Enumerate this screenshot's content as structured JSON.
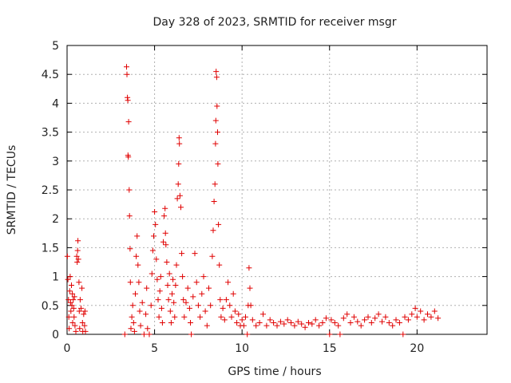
{
  "chart_data": {
    "type": "scatter",
    "title": "Day 328 of 2023, SRMTID for receiver msgr",
    "xlabel": "GPS time / hours",
    "ylabel": "SRMTID / TECUs",
    "xlim": [
      0,
      24
    ],
    "ylim": [
      0,
      5
    ],
    "xticks": [
      0,
      5,
      10,
      15,
      20
    ],
    "yticks": [
      0,
      0.5,
      1,
      1.5,
      2,
      2.5,
      3,
      3.5,
      4,
      4.5,
      5
    ],
    "xtick_labels": [
      "0",
      "5",
      "10",
      "15",
      "20"
    ],
    "ytick_labels": [
      "0",
      "0.5",
      "1",
      "1.5",
      "2",
      "2.5",
      "3",
      "3.5",
      "4",
      "4.5",
      "5"
    ],
    "grid": true,
    "marker": "plus",
    "color": "#e00000",
    "series": [
      {
        "name": "SRMTID",
        "points": [
          [
            0.02,
            1.35
          ],
          [
            0.05,
            0.95
          ],
          [
            0.08,
            0.6
          ],
          [
            0.1,
            0.3
          ],
          [
            0.12,
            0.1
          ],
          [
            0.15,
            0.75
          ],
          [
            0.18,
            1.0
          ],
          [
            0.2,
            0.55
          ],
          [
            0.22,
            0.4
          ],
          [
            0.25,
            0.85
          ],
          [
            0.28,
            0.5
          ],
          [
            0.3,
            0.7
          ],
          [
            0.32,
            0.2
          ],
          [
            0.35,
            0.6
          ],
          [
            0.38,
            0.45
          ],
          [
            0.4,
            0.3
          ],
          [
            0.42,
            0.65
          ],
          [
            0.45,
            0.15
          ],
          [
            0.5,
            0.05
          ],
          [
            0.55,
            1.35
          ],
          [
            0.58,
            1.25
          ],
          [
            0.6,
            1.45
          ],
          [
            0.62,
            1.62
          ],
          [
            0.65,
            1.3
          ],
          [
            0.68,
            0.9
          ],
          [
            0.7,
            0.4
          ],
          [
            0.72,
            0.1
          ],
          [
            0.75,
            0.6
          ],
          [
            0.8,
            0.45
          ],
          [
            0.85,
            0.8
          ],
          [
            0.88,
            0.2
          ],
          [
            0.9,
            0.05
          ],
          [
            0.95,
            0.35
          ],
          [
            1.0,
            0.15
          ],
          [
            1.02,
            0.4
          ],
          [
            1.05,
            0.05
          ],
          [
            3.3,
            0.0
          ],
          [
            3.4,
            4.63
          ],
          [
            3.42,
            4.5
          ],
          [
            3.45,
            4.1
          ],
          [
            3.47,
            4.05
          ],
          [
            3.48,
            3.1
          ],
          [
            3.5,
            3.07
          ],
          [
            3.52,
            3.68
          ],
          [
            3.55,
            2.5
          ],
          [
            3.57,
            2.05
          ],
          [
            3.6,
            1.48
          ],
          [
            3.62,
            0.9
          ],
          [
            3.65,
            0.1
          ],
          [
            3.7,
            0.3
          ],
          [
            3.75,
            0.5
          ],
          [
            3.8,
            0.2
          ],
          [
            3.85,
            0.05
          ],
          [
            3.9,
            0.7
          ],
          [
            3.95,
            1.35
          ],
          [
            4.0,
            1.7
          ],
          [
            4.05,
            1.2
          ],
          [
            4.1,
            0.9
          ],
          [
            4.15,
            0.4
          ],
          [
            4.2,
            0.15
          ],
          [
            4.3,
            0.55
          ],
          [
            4.4,
            0.0
          ],
          [
            4.5,
            0.35
          ],
          [
            4.55,
            0.8
          ],
          [
            4.6,
            0.1
          ],
          [
            4.7,
            0.0
          ],
          [
            4.8,
            0.5
          ],
          [
            4.85,
            1.05
          ],
          [
            4.9,
            1.45
          ],
          [
            4.95,
            1.7
          ],
          [
            5.0,
            2.12
          ],
          [
            5.05,
            1.9
          ],
          [
            5.1,
            1.3
          ],
          [
            5.15,
            0.95
          ],
          [
            5.2,
            0.6
          ],
          [
            5.25,
            0.3
          ],
          [
            5.3,
            0.75
          ],
          [
            5.35,
            1.0
          ],
          [
            5.4,
            0.45
          ],
          [
            5.45,
            0.2
          ],
          [
            5.5,
            1.6
          ],
          [
            5.55,
            2.05
          ],
          [
            5.6,
            2.18
          ],
          [
            5.62,
            1.75
          ],
          [
            5.65,
            1.55
          ],
          [
            5.7,
            1.25
          ],
          [
            5.75,
            0.85
          ],
          [
            5.8,
            0.6
          ],
          [
            5.85,
            1.05
          ],
          [
            5.9,
            0.4
          ],
          [
            5.95,
            0.2
          ],
          [
            6.0,
            0.7
          ],
          [
            6.05,
            0.95
          ],
          [
            6.1,
            0.55
          ],
          [
            6.15,
            0.3
          ],
          [
            6.2,
            0.85
          ],
          [
            6.25,
            1.2
          ],
          [
            6.3,
            2.35
          ],
          [
            6.35,
            2.6
          ],
          [
            6.38,
            2.95
          ],
          [
            6.4,
            3.4
          ],
          [
            6.42,
            3.3
          ],
          [
            6.45,
            2.4
          ],
          [
            6.5,
            2.2
          ],
          [
            6.55,
            1.4
          ],
          [
            6.6,
            1.0
          ],
          [
            6.65,
            0.6
          ],
          [
            6.7,
            0.3
          ],
          [
            6.8,
            0.55
          ],
          [
            6.9,
            0.8
          ],
          [
            7.0,
            0.45
          ],
          [
            7.05,
            0.2
          ],
          [
            7.1,
            0.0
          ],
          [
            7.2,
            0.65
          ],
          [
            7.3,
            1.4
          ],
          [
            7.4,
            0.9
          ],
          [
            7.5,
            0.5
          ],
          [
            7.6,
            0.3
          ],
          [
            7.7,
            0.7
          ],
          [
            7.8,
            1.0
          ],
          [
            7.9,
            0.4
          ],
          [
            8.0,
            0.15
          ],
          [
            8.1,
            0.8
          ],
          [
            8.2,
            0.5
          ],
          [
            8.3,
            1.35
          ],
          [
            8.35,
            1.8
          ],
          [
            8.4,
            2.3
          ],
          [
            8.45,
            2.6
          ],
          [
            8.48,
            3.3
          ],
          [
            8.5,
            3.7
          ],
          [
            8.52,
            4.55
          ],
          [
            8.55,
            4.45
          ],
          [
            8.57,
            3.95
          ],
          [
            8.6,
            3.5
          ],
          [
            8.62,
            2.95
          ],
          [
            8.65,
            1.9
          ],
          [
            8.7,
            1.2
          ],
          [
            8.75,
            0.6
          ],
          [
            8.8,
            0.3
          ],
          [
            8.9,
            0.45
          ],
          [
            9.0,
            0.25
          ],
          [
            9.1,
            0.6
          ],
          [
            9.2,
            0.9
          ],
          [
            9.3,
            0.5
          ],
          [
            9.4,
            0.3
          ],
          [
            9.5,
            0.7
          ],
          [
            9.6,
            0.4
          ],
          [
            9.7,
            0.2
          ],
          [
            9.8,
            0.35
          ],
          [
            9.9,
            0.15
          ],
          [
            10.0,
            0.25
          ],
          [
            10.1,
            0.15
          ],
          [
            10.2,
            0.3
          ],
          [
            10.3,
            0.0
          ],
          [
            10.35,
            0.5
          ],
          [
            10.4,
            1.15
          ],
          [
            10.45,
            0.8
          ],
          [
            10.5,
            0.5
          ],
          [
            10.6,
            0.25
          ],
          [
            10.8,
            0.15
          ],
          [
            11.0,
            0.2
          ],
          [
            11.2,
            0.35
          ],
          [
            11.4,
            0.15
          ],
          [
            11.6,
            0.25
          ],
          [
            11.8,
            0.2
          ],
          [
            12.0,
            0.15
          ],
          [
            12.2,
            0.22
          ],
          [
            12.4,
            0.18
          ],
          [
            12.6,
            0.25
          ],
          [
            12.8,
            0.2
          ],
          [
            13.0,
            0.15
          ],
          [
            13.2,
            0.22
          ],
          [
            13.4,
            0.18
          ],
          [
            13.6,
            0.12
          ],
          [
            13.8,
            0.2
          ],
          [
            14.0,
            0.18
          ],
          [
            14.2,
            0.25
          ],
          [
            14.4,
            0.15
          ],
          [
            14.6,
            0.2
          ],
          [
            14.8,
            0.28
          ],
          [
            15.0,
            0.0
          ],
          [
            15.1,
            0.25
          ],
          [
            15.3,
            0.2
          ],
          [
            15.5,
            0.15
          ],
          [
            15.6,
            0.0
          ],
          [
            15.8,
            0.28
          ],
          [
            16.0,
            0.35
          ],
          [
            16.2,
            0.2
          ],
          [
            16.4,
            0.3
          ],
          [
            16.6,
            0.22
          ],
          [
            16.8,
            0.15
          ],
          [
            17.0,
            0.25
          ],
          [
            17.2,
            0.3
          ],
          [
            17.4,
            0.2
          ],
          [
            17.6,
            0.28
          ],
          [
            17.8,
            0.35
          ],
          [
            18.0,
            0.22
          ],
          [
            18.2,
            0.3
          ],
          [
            18.4,
            0.2
          ],
          [
            18.6,
            0.15
          ],
          [
            18.8,
            0.25
          ],
          [
            19.0,
            0.2
          ],
          [
            19.2,
            0.0
          ],
          [
            19.3,
            0.3
          ],
          [
            19.5,
            0.25
          ],
          [
            19.7,
            0.35
          ],
          [
            19.9,
            0.45
          ],
          [
            20.0,
            0.3
          ],
          [
            20.2,
            0.4
          ],
          [
            20.4,
            0.25
          ],
          [
            20.6,
            0.35
          ],
          [
            20.8,
            0.3
          ],
          [
            21.0,
            0.4
          ],
          [
            21.2,
            0.28
          ]
        ]
      }
    ]
  }
}
